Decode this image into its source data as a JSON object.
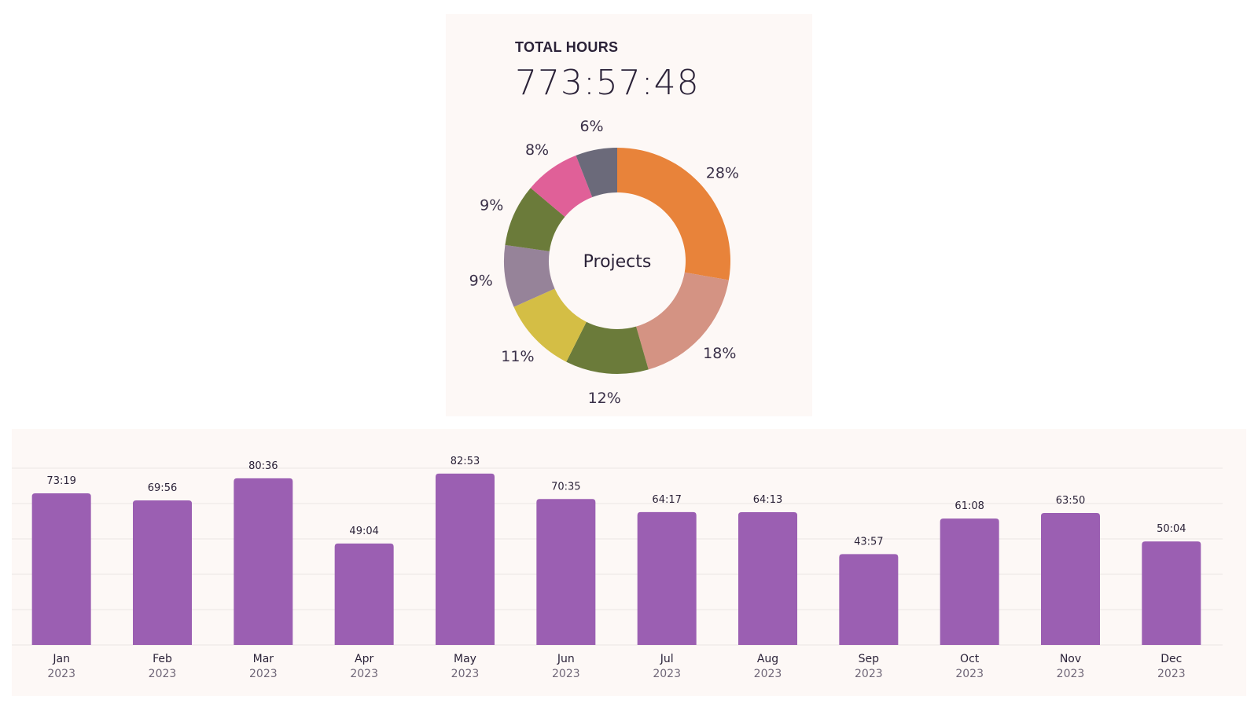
{
  "summary": {
    "label": "TOTAL HOURS",
    "value": "773:57:48"
  },
  "colors": {
    "bar": "#9b5fb2",
    "grid": "#ece6e4",
    "panel_bg": "#fdf8f6"
  },
  "chart_data": [
    {
      "type": "pie",
      "variant": "donut",
      "center_label": "Projects",
      "slices": [
        {
          "percent": 28,
          "label": "28%",
          "color": "#e8833a"
        },
        {
          "percent": 18,
          "label": "18%",
          "color": "#d49383"
        },
        {
          "percent": 12,
          "label": "12%",
          "color": "#6b7b3a"
        },
        {
          "percent": 11,
          "label": "11%",
          "color": "#d4be45"
        },
        {
          "percent": 9,
          "label": "9%",
          "color": "#968399"
        },
        {
          "percent": 9,
          "label": "9%",
          "color": "#6b7b3a"
        },
        {
          "percent": 8,
          "label": "8%",
          "color": "#e06098"
        },
        {
          "percent": 6,
          "label": "6%",
          "color": "#6b6a7a"
        }
      ],
      "start_angle": "12 o'clock",
      "direction": "clockwise"
    },
    {
      "type": "bar",
      "categories": [
        "Jan",
        "Feb",
        "Mar",
        "Apr",
        "May",
        "Jun",
        "Jul",
        "Aug",
        "Sep",
        "Oct",
        "Nov",
        "Dec"
      ],
      "sublabels": [
        "2023",
        "2023",
        "2023",
        "2023",
        "2023",
        "2023",
        "2023",
        "2023",
        "2023",
        "2023",
        "2023",
        "2023"
      ],
      "value_labels": [
        "73:19",
        "69:56",
        "80:36",
        "49:04",
        "82:53",
        "70:35",
        "64:17",
        "64:13",
        "43:57",
        "61:08",
        "63:50",
        "50:04"
      ],
      "values": [
        73.32,
        69.93,
        80.6,
        49.07,
        82.88,
        70.58,
        64.28,
        64.22,
        43.95,
        61.13,
        63.83,
        50.07
      ],
      "unit": "hours",
      "ylim": [
        0,
        85.5
      ],
      "grid_lines": 5,
      "grid": true,
      "yaxis_visible": false,
      "title": "",
      "xlabel": "",
      "ylabel": ""
    }
  ]
}
